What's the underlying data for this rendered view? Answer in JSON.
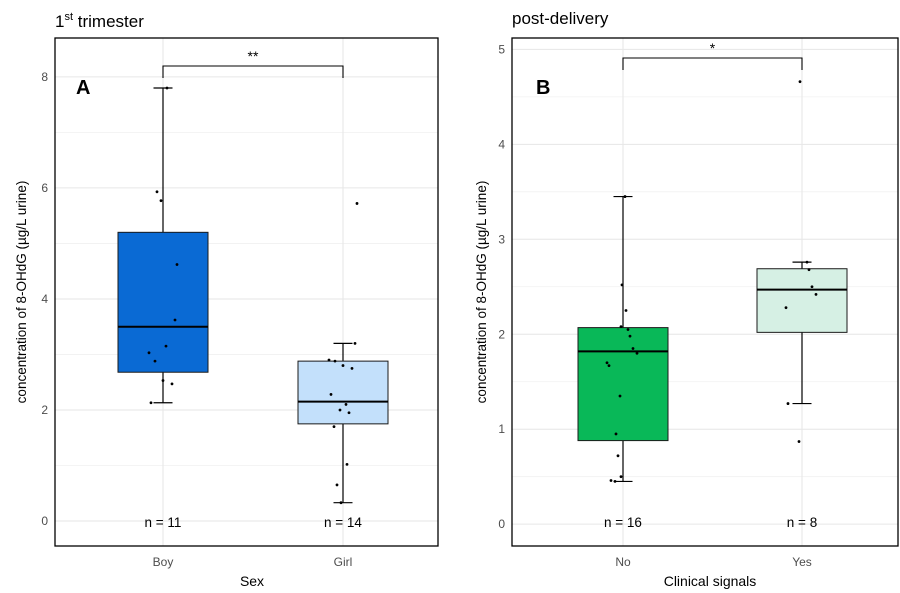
{
  "chart_data": [
    {
      "type": "box",
      "panel_letter": "A",
      "title_main": "1",
      "title_sup": "st",
      "title_rest": " trimester",
      "xlabel": "Sex",
      "ylabel": "concentration of 8-OHdG (µg/L urine)",
      "ylim": [
        -0.45,
        8.7
      ],
      "yticks": [
        0,
        2,
        4,
        6,
        8
      ],
      "grid": true,
      "significance": "**",
      "groups": [
        {
          "label": "Boy",
          "n_label": "n = 11",
          "color": "#0a6ad4",
          "min": 2.13,
          "q1": 2.68,
          "median": 3.5,
          "q3": 5.2,
          "max": 7.8,
          "points": [
            7.8,
            5.93,
            5.77,
            4.62,
            3.62,
            3.03,
            2.88,
            2.53,
            2.47,
            2.13,
            3.15
          ]
        },
        {
          "label": "Girl",
          "n_label": "n = 14",
          "color": "#c3e0fb",
          "min": 0.33,
          "q1": 1.75,
          "median": 2.15,
          "q3": 2.88,
          "max": 3.2,
          "points": [
            5.72,
            3.2,
            2.9,
            2.88,
            2.8,
            2.75,
            2.28,
            2.1,
            2.0,
            1.95,
            1.7,
            1.02,
            0.65,
            0.33
          ]
        }
      ]
    },
    {
      "type": "box",
      "panel_letter": "B",
      "title": "post-delivery",
      "xlabel": "Clinical signals",
      "ylabel": "concentration of 8-OHdG (µg/L urine)",
      "ylim": [
        -0.23,
        5.12
      ],
      "yticks": [
        0,
        1,
        2,
        3,
        4,
        5
      ],
      "grid": true,
      "significance": "*",
      "groups": [
        {
          "label": "No",
          "n_label": "n = 16",
          "color": "#09b858",
          "min": 0.45,
          "q1": 0.88,
          "median": 1.82,
          "q3": 2.07,
          "max": 3.45,
          "points": [
            3.45,
            2.52,
            2.25,
            2.08,
            2.05,
            1.98,
            1.85,
            1.8,
            1.7,
            1.67,
            1.35,
            0.95,
            0.72,
            0.5,
            0.46,
            0.45
          ]
        },
        {
          "label": "Yes",
          "n_label": "n = 8",
          "color": "#d6f0e4",
          "min": 1.27,
          "q1": 2.02,
          "median": 2.47,
          "q3": 2.69,
          "max": 2.76,
          "points": [
            4.66,
            2.76,
            2.68,
            2.5,
            2.42,
            2.28,
            1.27,
            0.87
          ]
        }
      ]
    }
  ]
}
